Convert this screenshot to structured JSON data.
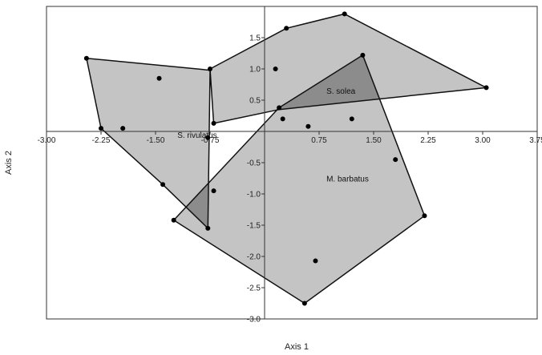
{
  "chart_data": {
    "type": "scatter",
    "subtype": "convex-hull",
    "title": "",
    "xlabel": "Axis 1",
    "ylabel": "Axis 2",
    "xlim": [
      -3.0,
      3.75
    ],
    "ylim": [
      -3.0,
      2.0
    ],
    "xticks": [
      -3.0,
      -2.25,
      -1.5,
      -0.75,
      0.75,
      1.5,
      2.25,
      3.0,
      3.75
    ],
    "xtick_labels": [
      "-3.00",
      "-2.25",
      "-1.50",
      "-0.75",
      "0.75",
      "1.50",
      "2.25",
      "3.00",
      "3.75"
    ],
    "yticks": [
      1.5,
      1.0,
      0.5,
      -0.5,
      -1.0,
      -1.5,
      -2.0,
      -2.5,
      -3.0
    ],
    "ytick_labels": [
      "1.5",
      "1.0",
      "0.5",
      "-0.5",
      "-1.0",
      "-1.5",
      "-2.0",
      "-2.5",
      "-3.0"
    ],
    "grid": false,
    "colors": {
      "hull_fill": "#c4c4c4",
      "overlap_fill": "#8c8c8c",
      "stroke": "#111111",
      "point": "#000000"
    },
    "groups": [
      {
        "name": "S. solea",
        "label_at": [
          0.85,
          0.6
        ],
        "hull": [
          [
            -0.75,
            1.0
          ],
          [
            0.3,
            1.65
          ],
          [
            1.1,
            1.88
          ],
          [
            3.05,
            0.7
          ],
          [
            0.2,
            0.35
          ],
          [
            -0.7,
            0.13
          ]
        ]
      },
      {
        "name": "S. rivulatus",
        "label_at": [
          -1.2,
          -0.1
        ],
        "hull": [
          [
            -2.45,
            1.17
          ],
          [
            -0.75,
            0.98
          ],
          [
            -0.78,
            -1.55
          ],
          [
            -1.4,
            -0.85
          ],
          [
            -2.25,
            0.05
          ]
        ]
      },
      {
        "name": "M. barbatus",
        "label_at": [
          0.85,
          -0.8
        ],
        "hull": [
          [
            0.2,
            0.38
          ],
          [
            1.35,
            1.22
          ],
          [
            2.2,
            -1.35
          ],
          [
            0.55,
            -2.75
          ],
          [
            -1.25,
            -1.42
          ]
        ]
      }
    ],
    "points": [
      [
        -2.45,
        1.17
      ],
      [
        -1.45,
        0.85
      ],
      [
        -2.25,
        0.05
      ],
      [
        -1.95,
        0.05
      ],
      [
        -1.4,
        -0.85
      ],
      [
        -0.78,
        -0.1
      ],
      [
        -0.7,
        -0.95
      ],
      [
        -1.25,
        -1.42
      ],
      [
        -0.78,
        -1.55
      ],
      [
        -0.75,
        1.0
      ],
      [
        0.15,
        1.0
      ],
      [
        -0.7,
        0.13
      ],
      [
        0.2,
        0.38
      ],
      [
        0.3,
        1.65
      ],
      [
        1.1,
        1.88
      ],
      [
        3.05,
        0.7
      ],
      [
        0.25,
        0.2
      ],
      [
        0.6,
        0.08
      ],
      [
        1.2,
        0.2
      ],
      [
        1.35,
        1.22
      ],
      [
        1.8,
        -0.45
      ],
      [
        2.2,
        -1.35
      ],
      [
        0.7,
        -2.07
      ],
      [
        0.55,
        -2.75
      ]
    ]
  }
}
